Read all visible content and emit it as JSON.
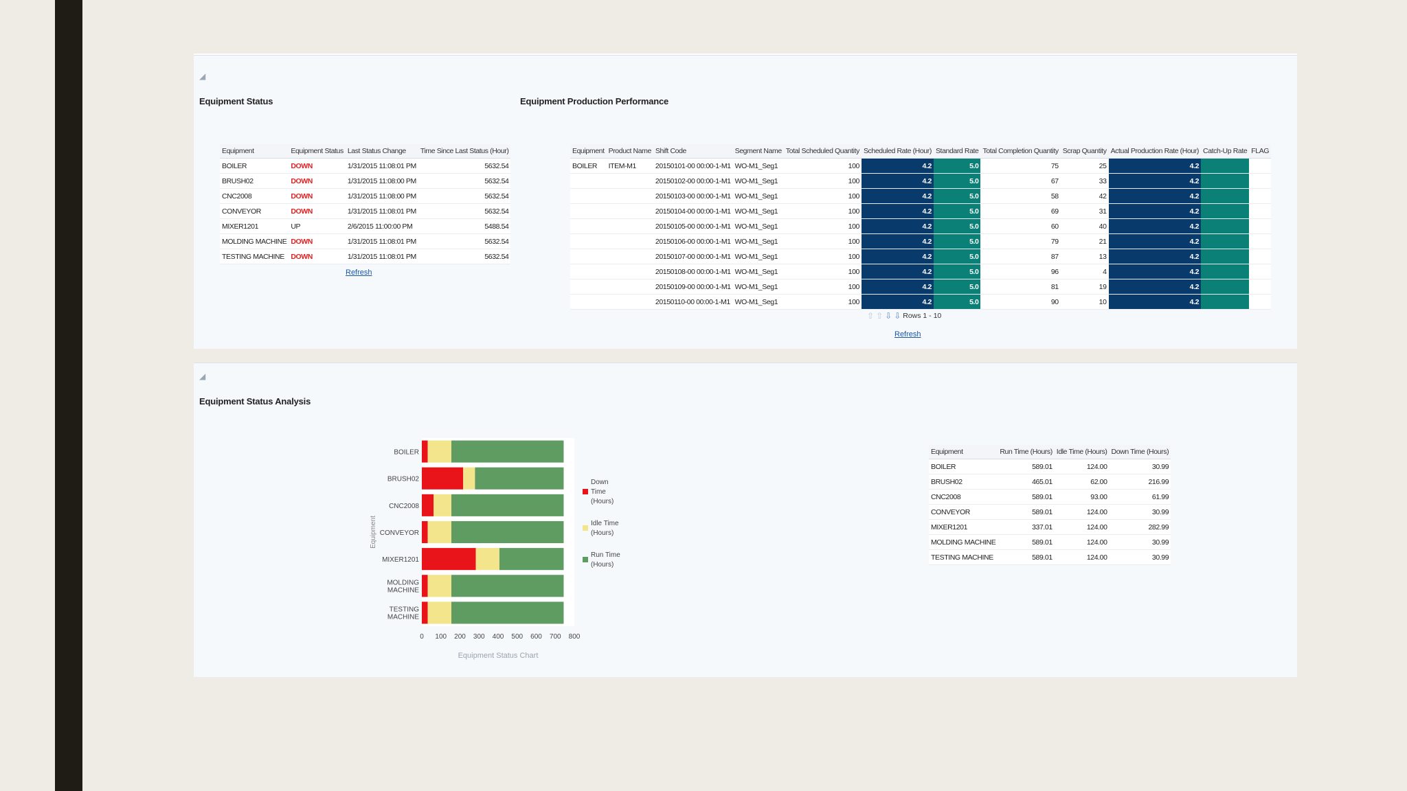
{
  "equipment_status": {
    "title": "Equipment Status",
    "columns": [
      "Equipment",
      "Equipment Status",
      "Last Status Change",
      "Time Since Last Status (Hour)"
    ],
    "rows": [
      [
        "BOILER",
        "DOWN",
        "1/31/2015 11:08:01 PM",
        "5632.54"
      ],
      [
        "BRUSH02",
        "DOWN",
        "1/31/2015 11:08:00 PM",
        "5632.54"
      ],
      [
        "CNC2008",
        "DOWN",
        "1/31/2015 11:08:00 PM",
        "5632.54"
      ],
      [
        "CONVEYOR",
        "DOWN",
        "1/31/2015 11:08:01 PM",
        "5632.54"
      ],
      [
        "MIXER1201",
        "UP",
        "2/6/2015 11:00:00 PM",
        "5488.54"
      ],
      [
        "MOLDING MACHINE",
        "DOWN",
        "1/31/2015 11:08:01 PM",
        "5632.54"
      ],
      [
        "TESTING MACHINE",
        "DOWN",
        "1/31/2015 11:08:01 PM",
        "5632.54"
      ]
    ],
    "refresh_label": "Refresh"
  },
  "production_performance": {
    "title": "Equipment Production Performance",
    "columns": [
      "Equipment",
      "Product Name",
      "Shift Code",
      "Segment Name",
      "Total Scheduled Quantity",
      "Scheduled Rate (Hour)",
      "Standard Rate",
      "Total Completion Quantity",
      "Scrap Quantity",
      "Actual Production Rate (Hour)",
      "Catch-Up Rate",
      "FLAG"
    ],
    "rows": [
      [
        "BOILER",
        "ITEM-M1",
        "20150101-00 00:00-1-M1",
        "WO-M1_Seg1",
        "100",
        "4.2",
        "5.0",
        "75",
        "25",
        "4.2"
      ],
      [
        "",
        "",
        "20150102-00 00:00-1-M1",
        "WO-M1_Seg1",
        "100",
        "4.2",
        "5.0",
        "67",
        "33",
        "4.2"
      ],
      [
        "",
        "",
        "20150103-00 00:00-1-M1",
        "WO-M1_Seg1",
        "100",
        "4.2",
        "5.0",
        "58",
        "42",
        "4.2"
      ],
      [
        "",
        "",
        "20150104-00 00:00-1-M1",
        "WO-M1_Seg1",
        "100",
        "4.2",
        "5.0",
        "69",
        "31",
        "4.2"
      ],
      [
        "",
        "",
        "20150105-00 00:00-1-M1",
        "WO-M1_Seg1",
        "100",
        "4.2",
        "5.0",
        "60",
        "40",
        "4.2"
      ],
      [
        "",
        "",
        "20150106-00 00:00-1-M1",
        "WO-M1_Seg1",
        "100",
        "4.2",
        "5.0",
        "79",
        "21",
        "4.2"
      ],
      [
        "",
        "",
        "20150107-00 00:00-1-M1",
        "WO-M1_Seg1",
        "100",
        "4.2",
        "5.0",
        "87",
        "13",
        "4.2"
      ],
      [
        "",
        "",
        "20150108-00 00:00-1-M1",
        "WO-M1_Seg1",
        "100",
        "4.2",
        "5.0",
        "96",
        "4",
        "4.2"
      ],
      [
        "",
        "",
        "20150109-00 00:00-1-M1",
        "WO-M1_Seg1",
        "100",
        "4.2",
        "5.0",
        "81",
        "19",
        "4.2"
      ],
      [
        "",
        "",
        "20150110-00 00:00-1-M1",
        "WO-M1_Seg1",
        "100",
        "4.2",
        "5.0",
        "90",
        "10",
        "4.2"
      ]
    ],
    "pager_text": "Rows 1 - 10",
    "refresh_label": "Refresh"
  },
  "status_analysis": {
    "title": "Equipment Status Analysis",
    "table": {
      "columns": [
        "Equipment",
        "Run Time (Hours)",
        "Idle Time (Hours)",
        "Down Time (Hours)"
      ],
      "rows": [
        [
          "BOILER",
          "589.01",
          "124.00",
          "30.99"
        ],
        [
          "BRUSH02",
          "465.01",
          "62.00",
          "216.99"
        ],
        [
          "CNC2008",
          "589.01",
          "93.00",
          "61.99"
        ],
        [
          "CONVEYOR",
          "589.01",
          "124.00",
          "30.99"
        ],
        [
          "MIXER1201",
          "337.01",
          "124.00",
          "282.99"
        ],
        [
          "MOLDING MACHINE",
          "589.01",
          "124.00",
          "30.99"
        ],
        [
          "TESTING MACHINE",
          "589.01",
          "124.00",
          "30.99"
        ]
      ]
    }
  },
  "chart_data": {
    "type": "bar",
    "orientation": "horizontal",
    "stacked": true,
    "title": "Equipment Status Chart",
    "ylabel": "Equipment",
    "xlabel": "",
    "categories": [
      "BOILER",
      "BRUSH02",
      "CNC2008",
      "CONVEYOR",
      "MIXER1201",
      "MOLDING MACHINE",
      "TESTING MACHINE"
    ],
    "series": [
      {
        "name": "Down Time (Hours)",
        "color": "#e8141a",
        "values": [
          30.99,
          216.99,
          61.99,
          30.99,
          282.99,
          30.99,
          30.99
        ]
      },
      {
        "name": "Idle Time (Hours)",
        "color": "#f2e58c",
        "values": [
          124.0,
          62.0,
          93.0,
          124.0,
          124.0,
          124.0,
          124.0
        ]
      },
      {
        "name": "Run Time (Hours)",
        "color": "#5f9c62",
        "values": [
          589.01,
          465.01,
          589.01,
          589.01,
          337.01,
          589.01,
          589.01
        ]
      }
    ],
    "xlim": [
      0,
      800
    ],
    "xticks": [
      "0",
      "100",
      "200",
      "300",
      "400",
      "500",
      "600",
      "700",
      "800"
    ],
    "legend_position": "right"
  }
}
